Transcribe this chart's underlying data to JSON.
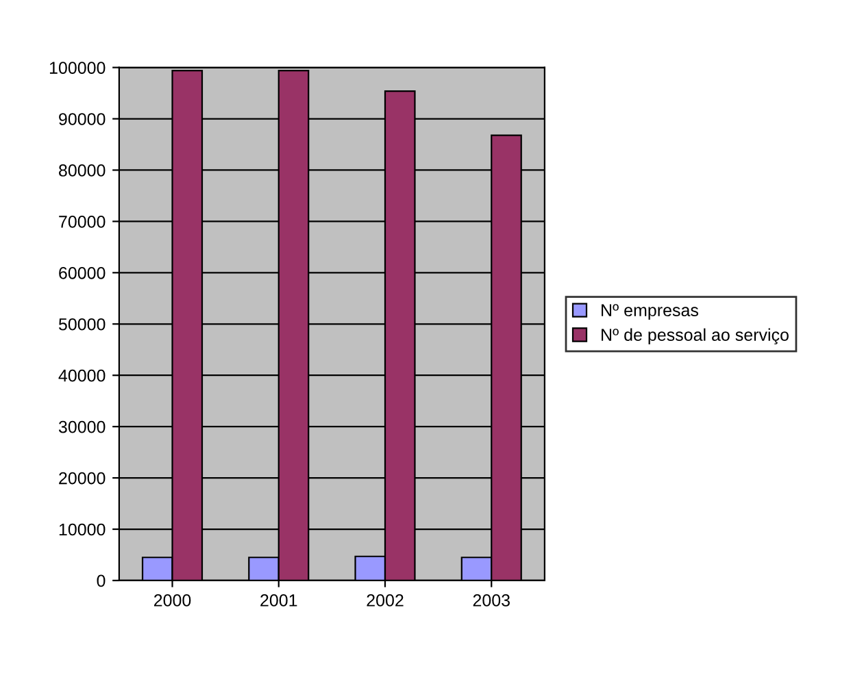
{
  "chart_data": {
    "type": "bar",
    "categories": [
      "2000",
      "2001",
      "2002",
      "2003"
    ],
    "series": [
      {
        "name": "Nº empresas",
        "color": "#9999ff",
        "values": [
          4500,
          4500,
          4700,
          4500
        ]
      },
      {
        "name": "Nº de pessoal ao serviço",
        "color": "#993366",
        "values": [
          99400,
          99400,
          95400,
          86800
        ]
      }
    ],
    "ylim": [
      0,
      100000
    ],
    "yticks": [
      0,
      10000,
      20000,
      30000,
      40000,
      50000,
      60000,
      70000,
      80000,
      90000,
      100000
    ],
    "grid": "y",
    "legend": "right"
  }
}
